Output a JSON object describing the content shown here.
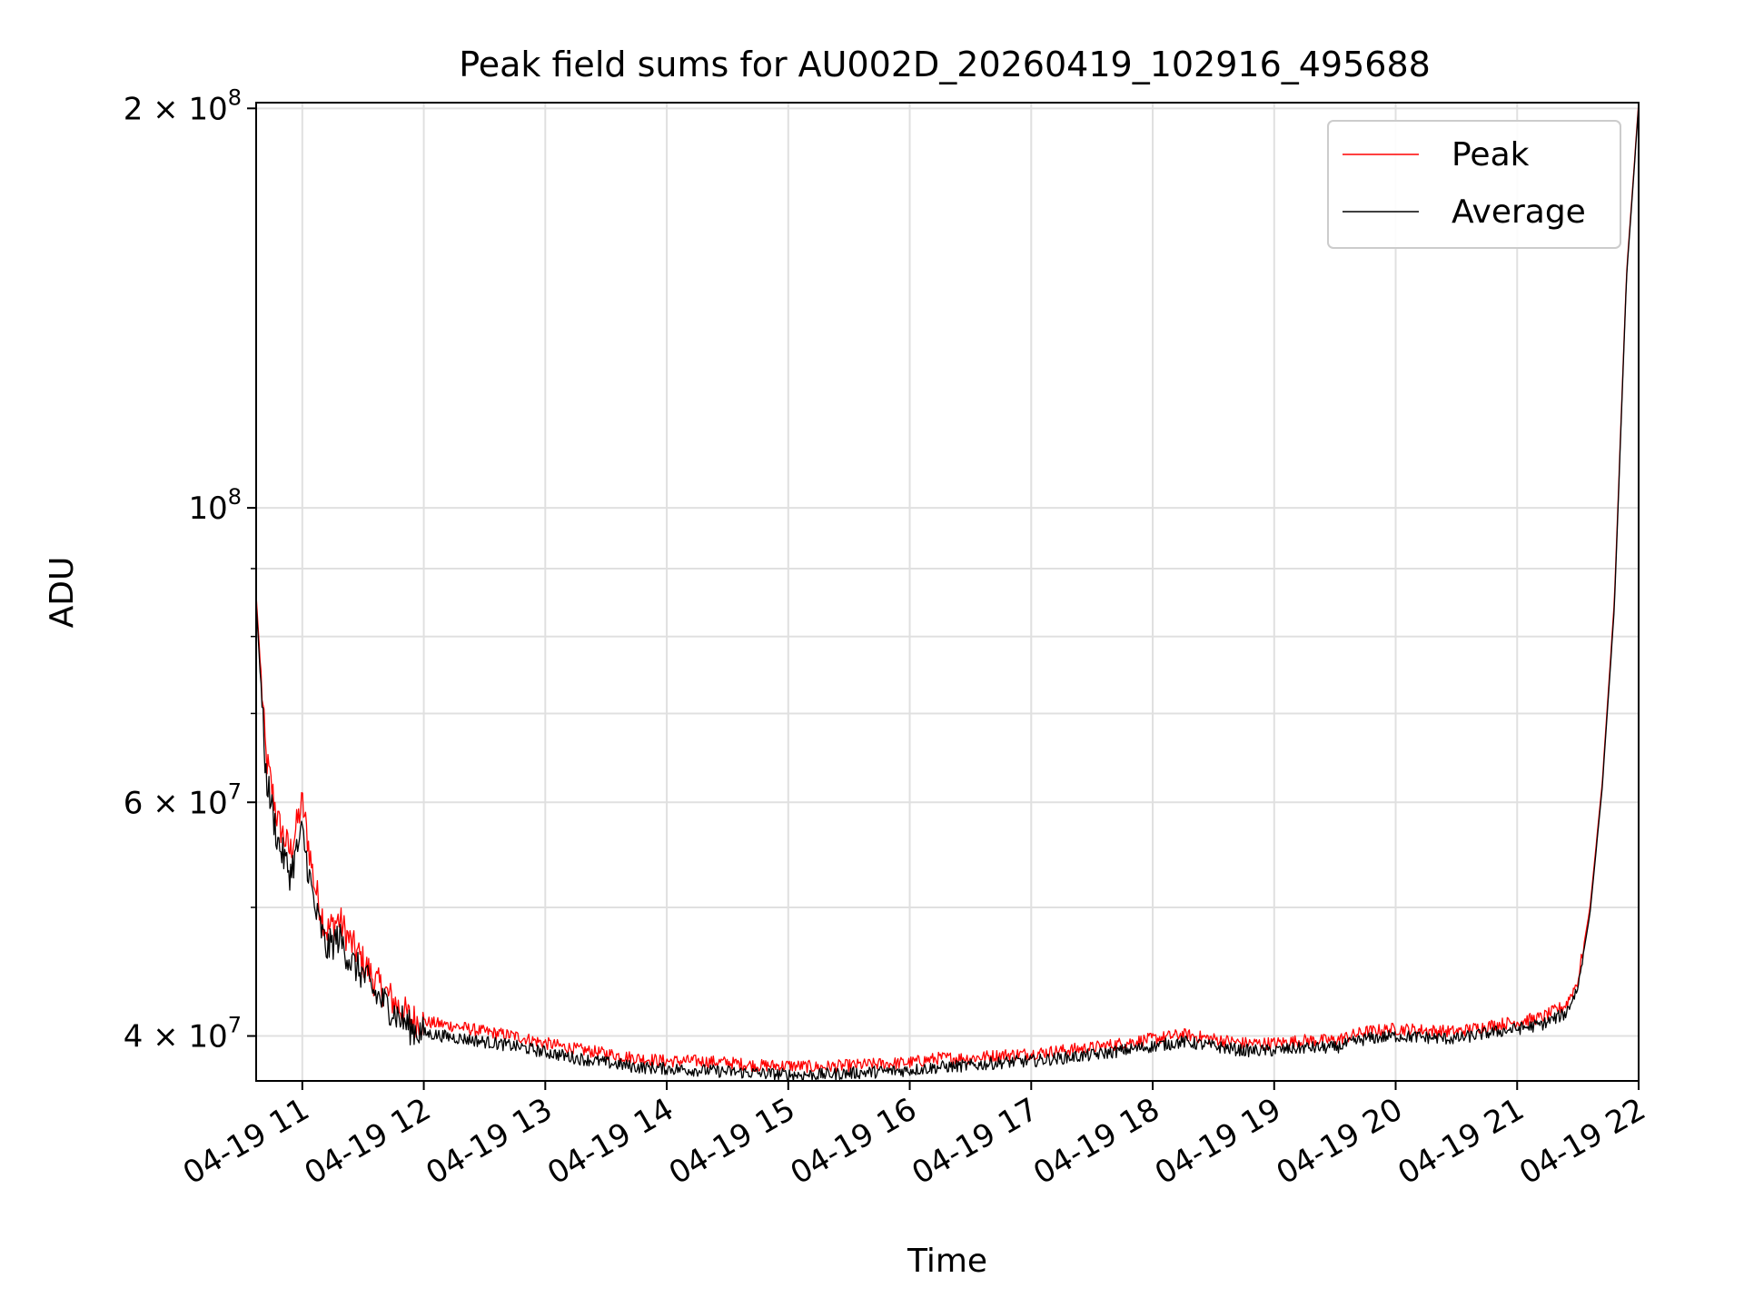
{
  "colors": {
    "background": "#ffffff",
    "peak": "#ff0000",
    "average": "#000000",
    "grid": "#e0e0e0",
    "legend_border": "#cccccc"
  },
  "chart_data": {
    "type": "line",
    "title": "Peak field sums for AU002D_20260419_102916_495688",
    "xlabel": "Time",
    "ylabel": "ADU",
    "yscale": "log",
    "xlim": [
      10.62,
      22.0
    ],
    "ylim": [
      37000000,
      202000000
    ],
    "grid": true,
    "legend_position": "top-right",
    "x_ticks": [
      {
        "value": 11,
        "label": "04-19 11"
      },
      {
        "value": 12,
        "label": "04-19 12"
      },
      {
        "value": 13,
        "label": "04-19 13"
      },
      {
        "value": 14,
        "label": "04-19 14"
      },
      {
        "value": 15,
        "label": "04-19 15"
      },
      {
        "value": 16,
        "label": "04-19 16"
      },
      {
        "value": 17,
        "label": "04-19 17"
      },
      {
        "value": 18,
        "label": "04-19 18"
      },
      {
        "value": 19,
        "label": "04-19 19"
      },
      {
        "value": 20,
        "label": "04-19 20"
      },
      {
        "value": 21,
        "label": "04-19 21"
      },
      {
        "value": 22,
        "label": "04-19 22"
      }
    ],
    "y_major_ticks": [
      {
        "value": 40000000,
        "base": "4 × 10",
        "exp": "7"
      },
      {
        "value": 60000000,
        "base": "6 × 10",
        "exp": "7"
      },
      {
        "value": 100000000,
        "base": "10",
        "exp": "8"
      },
      {
        "value": 200000000,
        "base": "2 × 10",
        "exp": "8"
      }
    ],
    "y_minor_ticks": [
      50000000,
      70000000,
      80000000,
      90000000
    ],
    "series": [
      {
        "name": "Peak",
        "color": "#ff0000",
        "points": [
          [
            10.62,
            86000000
          ],
          [
            10.7,
            65000000
          ],
          [
            10.8,
            58000000
          ],
          [
            10.9,
            55000000
          ],
          [
            11.0,
            60000000
          ],
          [
            11.1,
            52000000
          ],
          [
            11.2,
            48000000
          ],
          [
            11.3,
            49000000
          ],
          [
            11.4,
            47000000
          ],
          [
            11.5,
            45500000
          ],
          [
            11.6,
            44000000
          ],
          [
            11.7,
            43000000
          ],
          [
            11.8,
            42000000
          ],
          [
            11.9,
            41200000
          ],
          [
            12.0,
            41000000
          ],
          [
            12.25,
            40700000
          ],
          [
            12.5,
            40300000
          ],
          [
            12.75,
            40000000
          ],
          [
            13.0,
            39500000
          ],
          [
            13.25,
            39100000
          ],
          [
            13.5,
            38800000
          ],
          [
            13.75,
            38500000
          ],
          [
            14.0,
            38300000
          ],
          [
            14.25,
            38300000
          ],
          [
            14.5,
            38200000
          ],
          [
            14.75,
            38000000
          ],
          [
            15.0,
            38000000
          ],
          [
            15.25,
            37900000
          ],
          [
            15.5,
            38000000
          ],
          [
            15.75,
            38100000
          ],
          [
            16.0,
            38200000
          ],
          [
            16.25,
            38500000
          ],
          [
            16.5,
            38500000
          ],
          [
            16.75,
            38700000
          ],
          [
            17.0,
            38800000
          ],
          [
            17.25,
            39000000
          ],
          [
            17.5,
            39200000
          ],
          [
            17.75,
            39500000
          ],
          [
            18.0,
            39800000
          ],
          [
            18.25,
            40100000
          ],
          [
            18.5,
            39800000
          ],
          [
            18.75,
            39500000
          ],
          [
            19.0,
            39500000
          ],
          [
            19.25,
            39700000
          ],
          [
            19.5,
            39700000
          ],
          [
            19.75,
            40300000
          ],
          [
            20.0,
            40500000
          ],
          [
            20.25,
            40400000
          ],
          [
            20.5,
            40300000
          ],
          [
            20.75,
            40700000
          ],
          [
            21.0,
            41000000
          ],
          [
            21.2,
            41300000
          ],
          [
            21.4,
            42200000
          ],
          [
            21.5,
            44000000
          ],
          [
            21.6,
            50000000
          ],
          [
            21.7,
            62000000
          ],
          [
            21.8,
            85000000
          ],
          [
            21.9,
            150000000
          ],
          [
            22.0,
            202000000
          ]
        ]
      },
      {
        "name": "Average",
        "color": "#000000",
        "points": [
          [
            10.62,
            85000000
          ],
          [
            10.7,
            63000000
          ],
          [
            10.8,
            56000000
          ],
          [
            10.9,
            53000000
          ],
          [
            11.0,
            57000000
          ],
          [
            11.1,
            50000000
          ],
          [
            11.2,
            46500000
          ],
          [
            11.3,
            47500000
          ],
          [
            11.4,
            45500000
          ],
          [
            11.5,
            44500000
          ],
          [
            11.6,
            43000000
          ],
          [
            11.7,
            42200000
          ],
          [
            11.8,
            41300000
          ],
          [
            11.9,
            40500000
          ],
          [
            12.0,
            40200000
          ],
          [
            12.25,
            39900000
          ],
          [
            12.5,
            39600000
          ],
          [
            12.75,
            39300000
          ],
          [
            13.0,
            38900000
          ],
          [
            13.25,
            38500000
          ],
          [
            13.5,
            38200000
          ],
          [
            13.75,
            37900000
          ],
          [
            14.0,
            37800000
          ],
          [
            14.25,
            37700000
          ],
          [
            14.5,
            37600000
          ],
          [
            14.75,
            37500000
          ],
          [
            15.0,
            37400000
          ],
          [
            15.25,
            37400000
          ],
          [
            15.5,
            37500000
          ],
          [
            15.75,
            37600000
          ],
          [
            16.0,
            37700000
          ],
          [
            16.25,
            37900000
          ],
          [
            16.5,
            38000000
          ],
          [
            16.75,
            38200000
          ],
          [
            17.0,
            38300000
          ],
          [
            17.25,
            38500000
          ],
          [
            17.5,
            38700000
          ],
          [
            17.75,
            39000000
          ],
          [
            18.0,
            39300000
          ],
          [
            18.25,
            39600000
          ],
          [
            18.5,
            39300000
          ],
          [
            18.75,
            39000000
          ],
          [
            19.0,
            39000000
          ],
          [
            19.25,
            39200000
          ],
          [
            19.5,
            39200000
          ],
          [
            19.75,
            39800000
          ],
          [
            20.0,
            40000000
          ],
          [
            20.25,
            39900000
          ],
          [
            20.5,
            39800000
          ],
          [
            20.75,
            40200000
          ],
          [
            21.0,
            40500000
          ],
          [
            21.2,
            40800000
          ],
          [
            21.4,
            41600000
          ],
          [
            21.5,
            43500000
          ],
          [
            21.6,
            49500000
          ],
          [
            21.7,
            61500000
          ],
          [
            21.8,
            84000000
          ],
          [
            21.9,
            149000000
          ],
          [
            22.0,
            201000000
          ]
        ]
      }
    ],
    "legend": [
      {
        "name": "Peak",
        "color": "#ff0000"
      },
      {
        "name": "Average",
        "color": "#000000"
      }
    ]
  }
}
